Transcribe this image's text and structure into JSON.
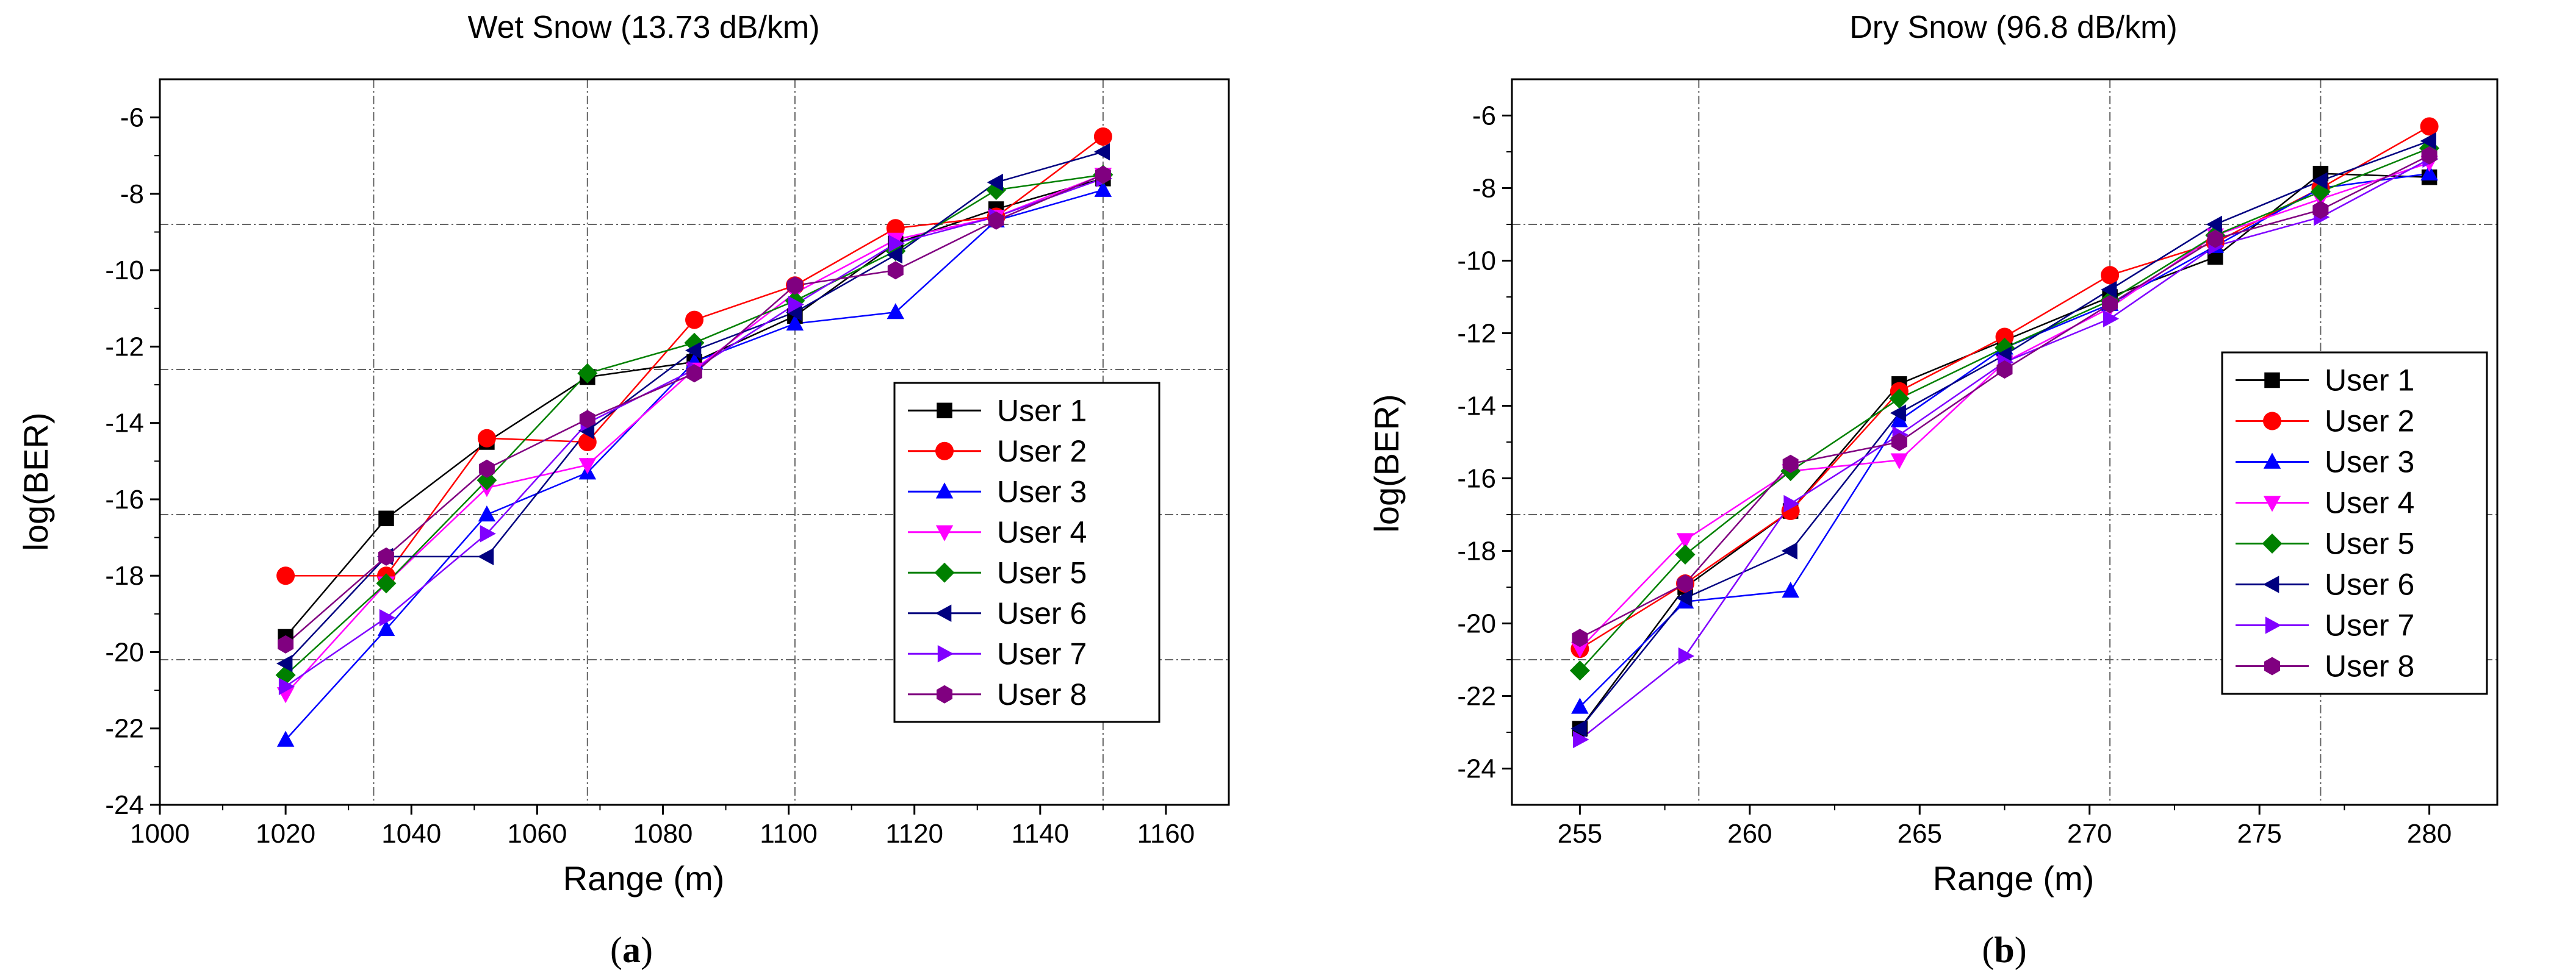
{
  "chart_data": [
    {
      "type": "line",
      "panel_label": "a",
      "title": "Wet Snow (13.73 dB/km)",
      "xlabel": "Range (m)",
      "ylabel": "log(BER)",
      "xlim": [
        1000,
        1170
      ],
      "ylim": [
        -24,
        -5
      ],
      "xticks": [
        1000,
        1020,
        1040,
        1060,
        1080,
        1100,
        1120,
        1140,
        1160
      ],
      "yticks": [
        -24,
        -22,
        -20,
        -18,
        -16,
        -14,
        -12,
        -10,
        -8,
        -6
      ],
      "x": [
        1020,
        1036,
        1052,
        1068,
        1085,
        1101,
        1117,
        1133,
        1150
      ],
      "ref_lines_x": [
        1034,
        1068,
        1101,
        1150
      ],
      "ref_lines_y": [
        -8.8,
        -12.6,
        -16.4,
        -20.2
      ],
      "legend_position": "right",
      "series": [
        {
          "name": "User 1",
          "values": [
            -19.6,
            -16.5,
            -14.5,
            -12.8,
            -12.4,
            -11.2,
            -9.3,
            -8.4,
            -7.6
          ]
        },
        {
          "name": "User 2",
          "values": [
            -18.0,
            -18.0,
            -14.4,
            -14.5,
            -11.3,
            -10.4,
            -8.9,
            -8.6,
            -6.5
          ]
        },
        {
          "name": "User 3",
          "values": [
            -22.3,
            -19.4,
            -16.4,
            -15.3,
            -12.4,
            -11.4,
            -11.1,
            -8.7,
            -7.9
          ]
        },
        {
          "name": "User 4",
          "values": [
            -21.1,
            -18.2,
            -15.7,
            -15.1,
            -12.6,
            -10.6,
            -9.2,
            -8.6,
            -7.5
          ]
        },
        {
          "name": "User 5",
          "values": [
            -20.6,
            -18.2,
            -15.5,
            -12.7,
            -11.9,
            -10.8,
            -9.5,
            -7.9,
            -7.5
          ]
        },
        {
          "name": "User 6",
          "values": [
            -20.3,
            -17.5,
            -17.5,
            -14.2,
            -12.1,
            -11.1,
            -9.6,
            -7.7,
            -6.9
          ]
        },
        {
          "name": "User 7",
          "values": [
            -20.9,
            -19.1,
            -16.9,
            -14.0,
            -12.6,
            -10.9,
            -9.3,
            -8.6,
            -7.6
          ]
        },
        {
          "name": "User 8",
          "values": [
            -19.8,
            -17.5,
            -15.2,
            -13.9,
            -12.7,
            -10.4,
            -10.0,
            -8.7,
            -7.5
          ]
        }
      ]
    },
    {
      "type": "line",
      "panel_label": "b",
      "title": "Dry Snow (96.8 dB/km)",
      "xlabel": "Range (m)",
      "ylabel": "log(BER)",
      "xlim": [
        253,
        282
      ],
      "ylim": [
        -25,
        -5
      ],
      "xticks": [
        255,
        260,
        265,
        270,
        275,
        280
      ],
      "yticks": [
        -24,
        -22,
        -20,
        -18,
        -16,
        -14,
        -12,
        -10,
        -8,
        -6
      ],
      "x": [
        255,
        258.1,
        261.2,
        264.4,
        267.5,
        270.6,
        273.7,
        276.8,
        280
      ],
      "ref_lines_x": [
        258.5,
        270.6,
        276.8
      ],
      "ref_lines_y": [
        -9.0,
        -17.0,
        -21.0
      ],
      "legend_position": "right",
      "series": [
        {
          "name": "User 1",
          "values": [
            -22.9,
            -19.0,
            -16.9,
            -13.4,
            -12.2,
            -11.0,
            -9.9,
            -7.6,
            -7.7
          ]
        },
        {
          "name": "User 2",
          "values": [
            -20.7,
            -18.9,
            -16.9,
            -13.6,
            -12.1,
            -10.4,
            -9.5,
            -8.0,
            -6.3
          ]
        },
        {
          "name": "User 3",
          "values": [
            -22.3,
            -19.4,
            -19.1,
            -14.4,
            -12.4,
            -11.2,
            -9.6,
            -8.0,
            -7.6
          ]
        },
        {
          "name": "User 4",
          "values": [
            -20.7,
            -17.7,
            -15.8,
            -15.5,
            -12.8,
            -11.3,
            -9.3,
            -8.3,
            -7.3
          ]
        },
        {
          "name": "User 5",
          "values": [
            -21.3,
            -18.1,
            -15.8,
            -13.8,
            -12.4,
            -11.1,
            -9.3,
            -8.1,
            -6.9
          ]
        },
        {
          "name": "User 6",
          "values": [
            -22.9,
            -19.3,
            -18.0,
            -14.2,
            -12.6,
            -10.8,
            -9.0,
            -7.8,
            -6.7
          ]
        },
        {
          "name": "User 7",
          "values": [
            -23.2,
            -20.9,
            -16.7,
            -14.8,
            -12.8,
            -11.6,
            -9.6,
            -8.8,
            -7.2
          ]
        },
        {
          "name": "User 8",
          "values": [
            -20.4,
            -18.9,
            -15.6,
            -15.0,
            -13.0,
            -11.2,
            -9.4,
            -8.6,
            -7.1
          ]
        }
      ]
    }
  ],
  "series_styles": [
    {
      "name": "User 1",
      "color": "#000000",
      "marker": "square"
    },
    {
      "name": "User 2",
      "color": "#ff0000",
      "marker": "circle"
    },
    {
      "name": "User 3",
      "color": "#0000ff",
      "marker": "triangle-up"
    },
    {
      "name": "User 4",
      "color": "#ff00ff",
      "marker": "triangle-down"
    },
    {
      "name": "User 5",
      "color": "#008000",
      "marker": "diamond"
    },
    {
      "name": "User 6",
      "color": "#000080",
      "marker": "triangle-left"
    },
    {
      "name": "User 7",
      "color": "#8000ff",
      "marker": "triangle-right"
    },
    {
      "name": "User 8",
      "color": "#800080",
      "marker": "hexagon"
    }
  ]
}
